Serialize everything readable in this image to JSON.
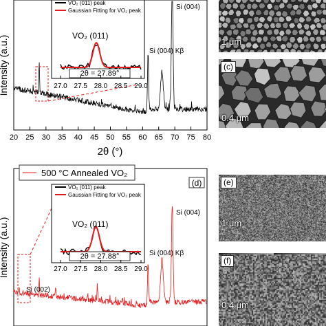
{
  "chart_data": [
    {
      "type": "line",
      "panel": "upper",
      "xlabel": "2θ (°)",
      "ylabel": "Intensity (a.u.)",
      "xlim": [
        20,
        80
      ],
      "xticks": [
        "20",
        "25",
        "30",
        "35",
        "40",
        "45",
        "50",
        "55",
        "60",
        "65",
        "70",
        "75",
        "80"
      ],
      "series": [
        {
          "color": "#000000"
        }
      ],
      "annotations": [
        "Si (004)",
        "Si (004) Kβ"
      ],
      "inset": {
        "legend": [
          "VO₂ (011) peak",
          "Gaussian Fitting for VO₂ peak"
        ],
        "peak_label": "VO₂ (011)",
        "peak_value": "2θ = 27.89°",
        "xticks": [
          "27.0",
          "27.5",
          "28.0",
          "28.5",
          "29.0"
        ],
        "xlim": [
          27.0,
          29.0
        ],
        "peak_center": 27.89
      }
    },
    {
      "type": "line",
      "panel": "(d)",
      "ylabel": "Intensity (a.u.)",
      "xlim": [
        20,
        80
      ],
      "legend": [
        "500 °C Annealed VO₂"
      ],
      "series": [
        {
          "name": "500 °C Annealed VO₂",
          "color": "#e41a1c"
        }
      ],
      "annotations": [
        "Si (004)",
        "Si (004) Kβ",
        "Si (002)"
      ],
      "inset": {
        "legend": [
          "VO₂ (011) peak",
          "Gaussian Fitting for VO₂ peak"
        ],
        "peak_label": "VO₂ (011)",
        "peak_value": "2θ = 27.88°",
        "xticks": [
          "27.0",
          "27.5",
          "28.0",
          "28.5",
          "29.0"
        ],
        "xlim": [
          27.0,
          29.0
        ],
        "peak_center": 27.88
      }
    }
  ],
  "panel_tags": {
    "c": "(c)",
    "d": "(d)",
    "e": "(e)",
    "f": "(f)"
  },
  "sem_images": {
    "b_scale": "1 μm",
    "c_scale": "0.4 μm",
    "e_scale": "1 μm",
    "f_scale": "0.4 μm"
  }
}
